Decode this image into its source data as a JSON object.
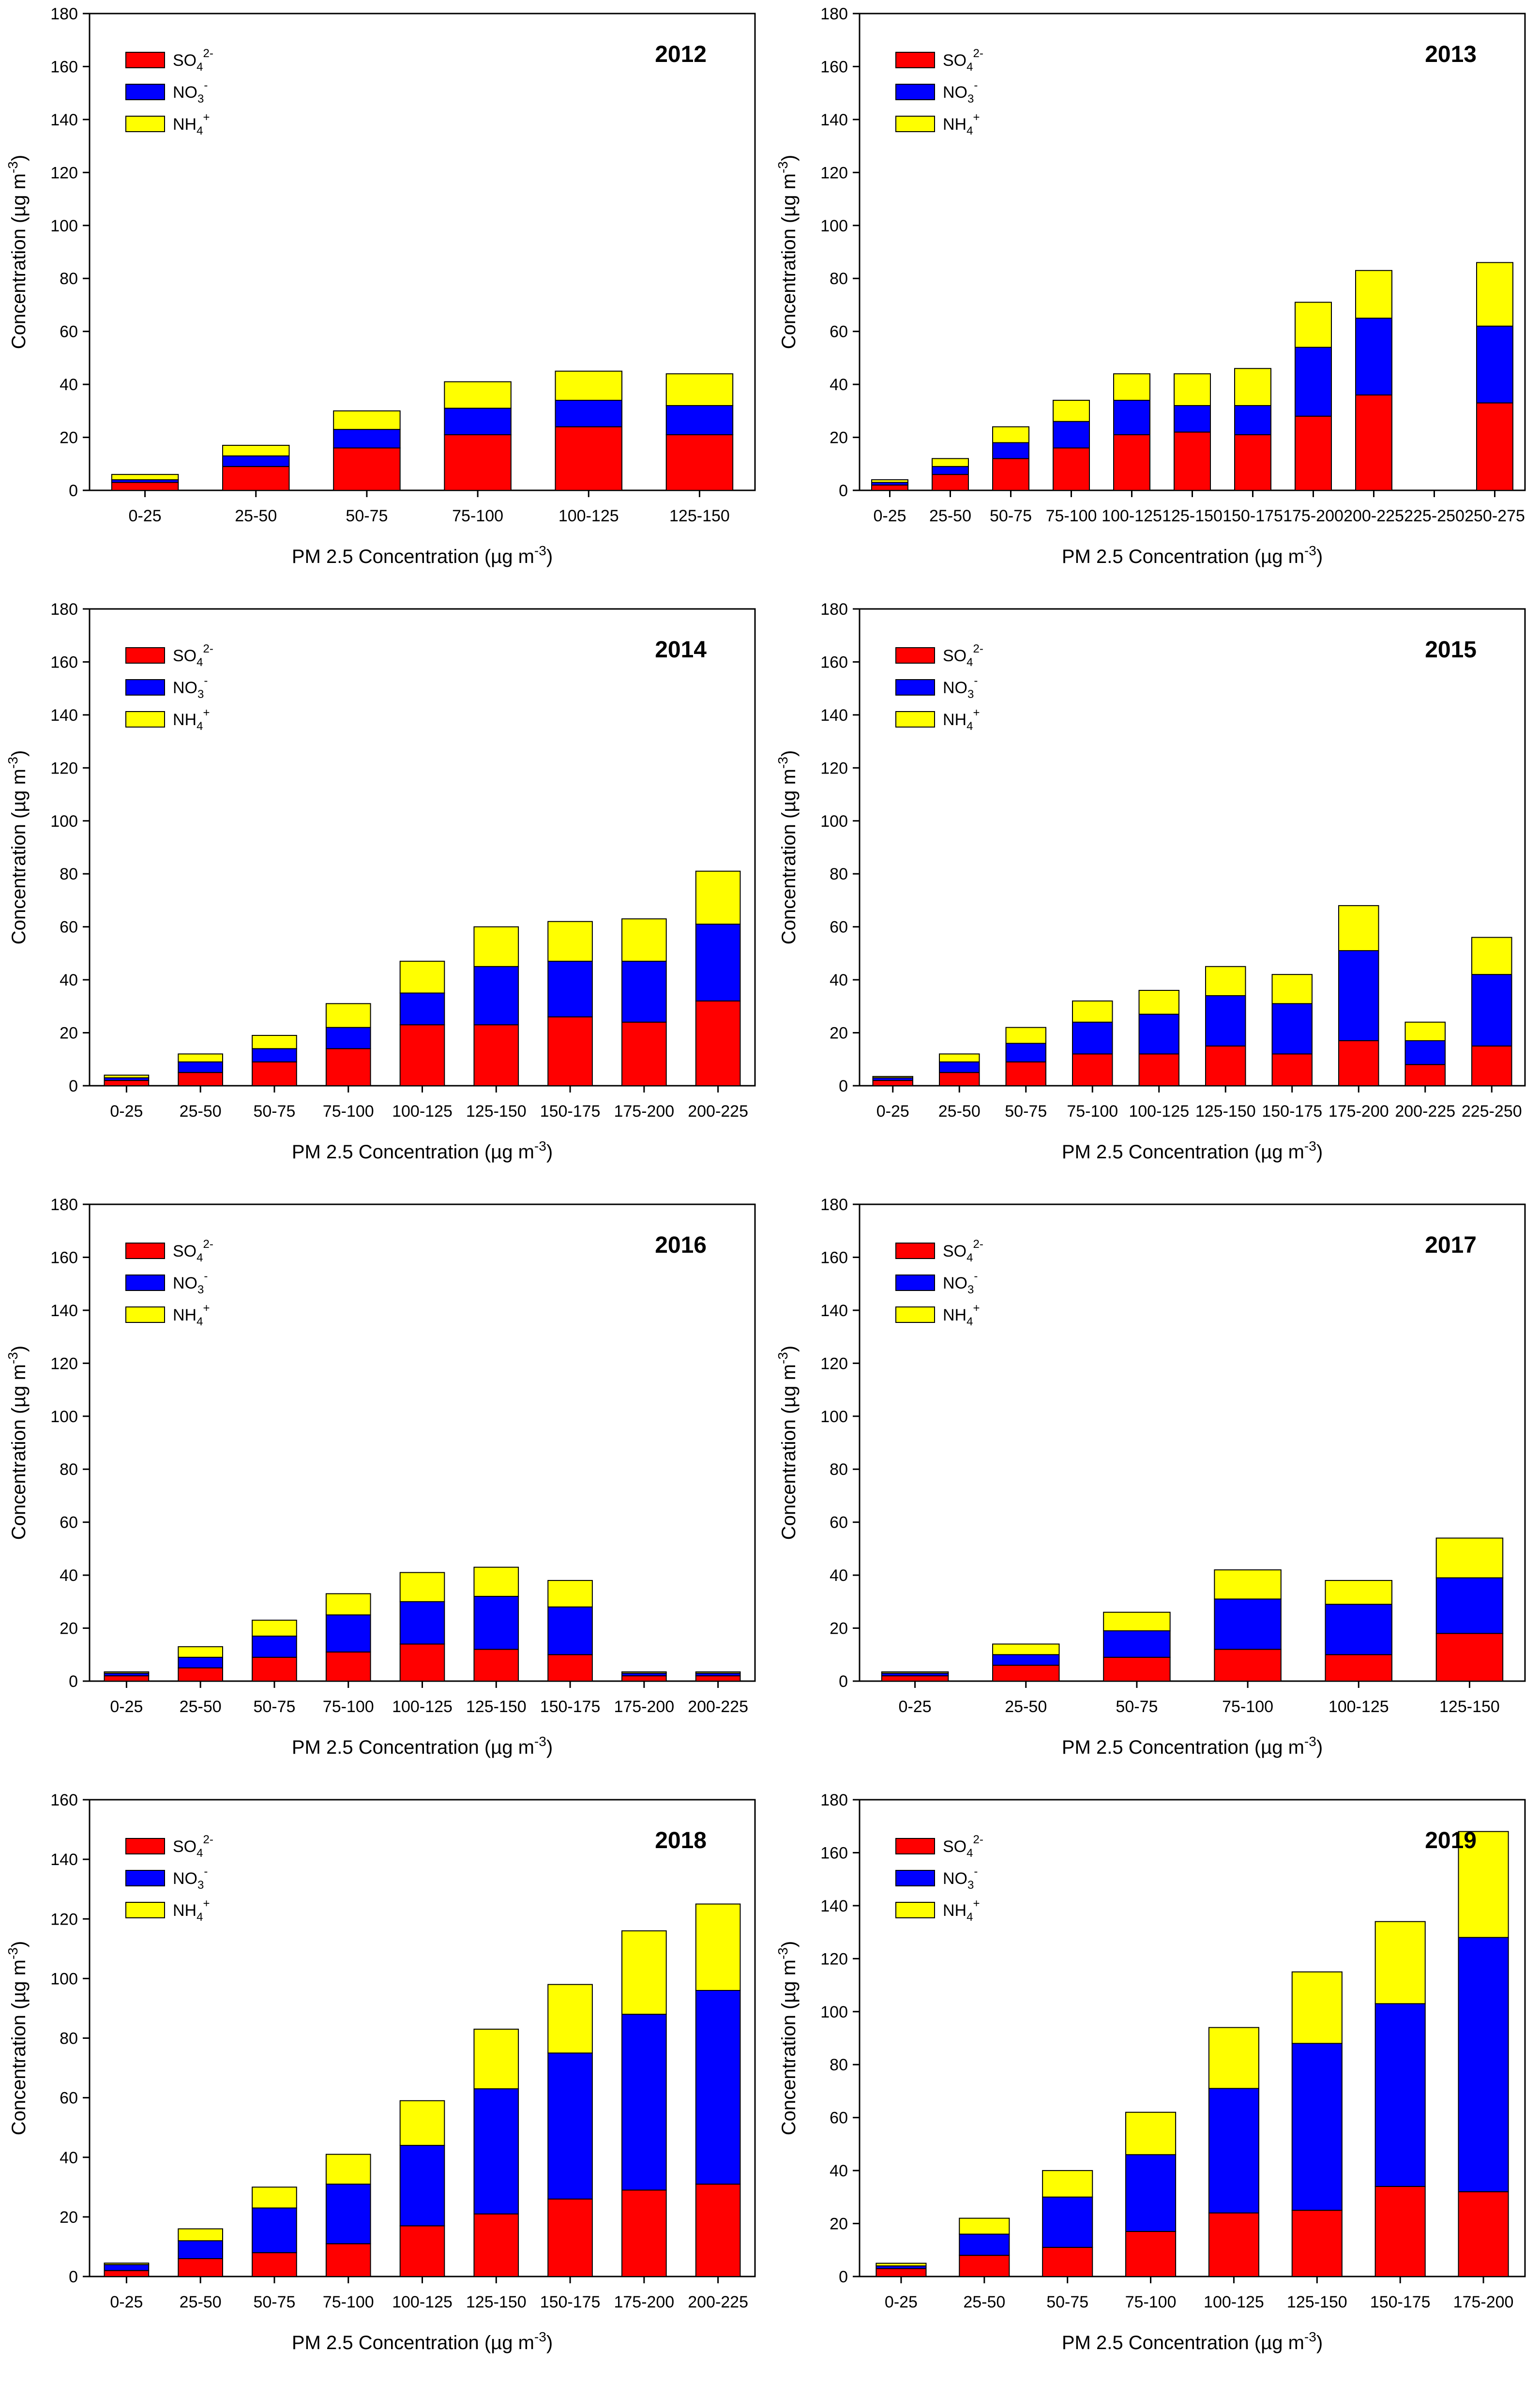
{
  "legend": {
    "so4": {
      "base": "SO",
      "sub": "4",
      "sup": "2-",
      "color": "#ff0000"
    },
    "no3": {
      "base": "NO",
      "sub": "3",
      "sup": "-",
      "color": "#0000ff"
    },
    "nh4": {
      "base": "NH",
      "sub": "4",
      "sup": "+",
      "color": "#ffff00"
    }
  },
  "axis": {
    "xlabel": "PM 2.5 Concentration (µg m",
    "xlabel_sup": "-3",
    "ylabel": "Concentration (µg m",
    "ylabel_sup": "-3",
    "close_paren": ")"
  },
  "chart_data": [
    {
      "type": "bar",
      "stacked": true,
      "title": "2012",
      "ylim": [
        0,
        180
      ],
      "yticks": [
        0,
        20,
        40,
        60,
        80,
        100,
        120,
        140,
        160,
        180
      ],
      "categories": [
        "0-25",
        "25-50",
        "50-75",
        "75-100",
        "100-125",
        "125-150"
      ],
      "series": [
        {
          "name": "SO4",
          "values": [
            3,
            9,
            16,
            21,
            24,
            21
          ]
        },
        {
          "name": "NO3",
          "values": [
            1,
            4,
            7,
            10,
            10,
            11
          ]
        },
        {
          "name": "NH4",
          "values": [
            2,
            4,
            7,
            10,
            11,
            12
          ]
        }
      ]
    },
    {
      "type": "bar",
      "stacked": true,
      "title": "2013",
      "ylim": [
        0,
        180
      ],
      "yticks": [
        0,
        20,
        40,
        60,
        80,
        100,
        120,
        140,
        160,
        180
      ],
      "categories": [
        "0-25",
        "25-50",
        "50-75",
        "75-100",
        "100-125",
        "125-150",
        "150-175",
        "175-200",
        "200-225",
        "225-250",
        "250-275"
      ],
      "series": [
        {
          "name": "SO4",
          "values": [
            2,
            6,
            12,
            16,
            21,
            22,
            21,
            28,
            36,
            0,
            33
          ]
        },
        {
          "name": "NO3",
          "values": [
            1,
            3,
            6,
            10,
            13,
            10,
            11,
            26,
            29,
            0,
            29
          ]
        },
        {
          "name": "NH4",
          "values": [
            1,
            3,
            6,
            8,
            10,
            12,
            14,
            17,
            18,
            0,
            24
          ]
        }
      ]
    },
    {
      "type": "bar",
      "stacked": true,
      "title": "2014",
      "ylim": [
        0,
        180
      ],
      "yticks": [
        0,
        20,
        40,
        60,
        80,
        100,
        120,
        140,
        160,
        180
      ],
      "categories": [
        "0-25",
        "25-50",
        "50-75",
        "75-100",
        "100-125",
        "125-150",
        "150-175",
        "175-200",
        "200-225"
      ],
      "series": [
        {
          "name": "SO4",
          "values": [
            2,
            5,
            9,
            14,
            23,
            23,
            26,
            24,
            32
          ]
        },
        {
          "name": "NO3",
          "values": [
            1,
            4,
            5,
            8,
            12,
            22,
            21,
            23,
            29
          ]
        },
        {
          "name": "NH4",
          "values": [
            1,
            3,
            5,
            9,
            12,
            15,
            15,
            16,
            20
          ]
        }
      ]
    },
    {
      "type": "bar",
      "stacked": true,
      "title": "2015",
      "ylim": [
        0,
        180
      ],
      "yticks": [
        0,
        20,
        40,
        60,
        80,
        100,
        120,
        140,
        160,
        180
      ],
      "categories": [
        "0-25",
        "25-50",
        "50-75",
        "75-100",
        "100-125",
        "125-150",
        "150-175",
        "175-200",
        "200-225",
        "225-250"
      ],
      "series": [
        {
          "name": "SO4",
          "values": [
            2,
            5,
            9,
            12,
            12,
            15,
            12,
            17,
            8,
            15
          ]
        },
        {
          "name": "NO3",
          "values": [
            1,
            4,
            7,
            12,
            15,
            19,
            19,
            34,
            9,
            27
          ]
        },
        {
          "name": "NH4",
          "values": [
            0.5,
            3,
            6,
            8,
            9,
            11,
            11,
            17,
            7,
            14
          ]
        }
      ]
    },
    {
      "type": "bar",
      "stacked": true,
      "title": "2016",
      "ylim": [
        0,
        180
      ],
      "yticks": [
        0,
        20,
        40,
        60,
        80,
        100,
        120,
        140,
        160,
        180
      ],
      "categories": [
        "0-25",
        "25-50",
        "50-75",
        "75-100",
        "100-125",
        "125-150",
        "150-175",
        "175-200",
        "200-225"
      ],
      "series": [
        {
          "name": "SO4",
          "values": [
            2,
            5,
            9,
            11,
            14,
            12,
            10,
            2,
            2
          ]
        },
        {
          "name": "NO3",
          "values": [
            1,
            4,
            8,
            14,
            16,
            20,
            18,
            1,
            1
          ]
        },
        {
          "name": "NH4",
          "values": [
            0.5,
            4,
            6,
            8,
            11,
            11,
            10,
            0.5,
            0.5
          ]
        }
      ]
    },
    {
      "type": "bar",
      "stacked": true,
      "title": "2017",
      "ylim": [
        0,
        180
      ],
      "yticks": [
        0,
        20,
        40,
        60,
        80,
        100,
        120,
        140,
        160,
        180
      ],
      "categories": [
        "0-25",
        "25-50",
        "50-75",
        "75-100",
        "100-125",
        "125-150"
      ],
      "series": [
        {
          "name": "SO4",
          "values": [
            2,
            6,
            9,
            12,
            10,
            18
          ]
        },
        {
          "name": "NO3",
          "values": [
            1,
            4,
            10,
            19,
            19,
            21
          ]
        },
        {
          "name": "NH4",
          "values": [
            0.5,
            4,
            7,
            11,
            9,
            15
          ]
        }
      ]
    },
    {
      "type": "bar",
      "stacked": true,
      "title": "2018",
      "ylim": [
        0,
        160
      ],
      "yticks": [
        0,
        20,
        40,
        60,
        80,
        100,
        120,
        140,
        160
      ],
      "categories": [
        "0-25",
        "25-50",
        "50-75",
        "75-100",
        "100-125",
        "125-150",
        "150-175",
        "175-200",
        "200-225"
      ],
      "series": [
        {
          "name": "SO4",
          "values": [
            2,
            6,
            8,
            11,
            17,
            21,
            26,
            29,
            31
          ]
        },
        {
          "name": "NO3",
          "values": [
            2,
            6,
            15,
            20,
            27,
            42,
            49,
            59,
            65
          ]
        },
        {
          "name": "NH4",
          "values": [
            0.5,
            4,
            7,
            10,
            15,
            20,
            23,
            28,
            29
          ]
        }
      ]
    },
    {
      "type": "bar",
      "stacked": true,
      "title": "2019",
      "ylim": [
        0,
        180
      ],
      "yticks": [
        0,
        20,
        40,
        60,
        80,
        100,
        120,
        140,
        160,
        180
      ],
      "categories": [
        "0-25",
        "25-50",
        "50-75",
        "75-100",
        "100-125",
        "125-150",
        "150-175",
        "175-200"
      ],
      "series": [
        {
          "name": "SO4",
          "values": [
            3,
            8,
            11,
            17,
            24,
            25,
            34,
            32
          ]
        },
        {
          "name": "NO3",
          "values": [
            1,
            8,
            19,
            29,
            47,
            63,
            69,
            96
          ]
        },
        {
          "name": "NH4",
          "values": [
            1,
            6,
            10,
            16,
            23,
            27,
            31,
            40
          ]
        }
      ]
    }
  ]
}
